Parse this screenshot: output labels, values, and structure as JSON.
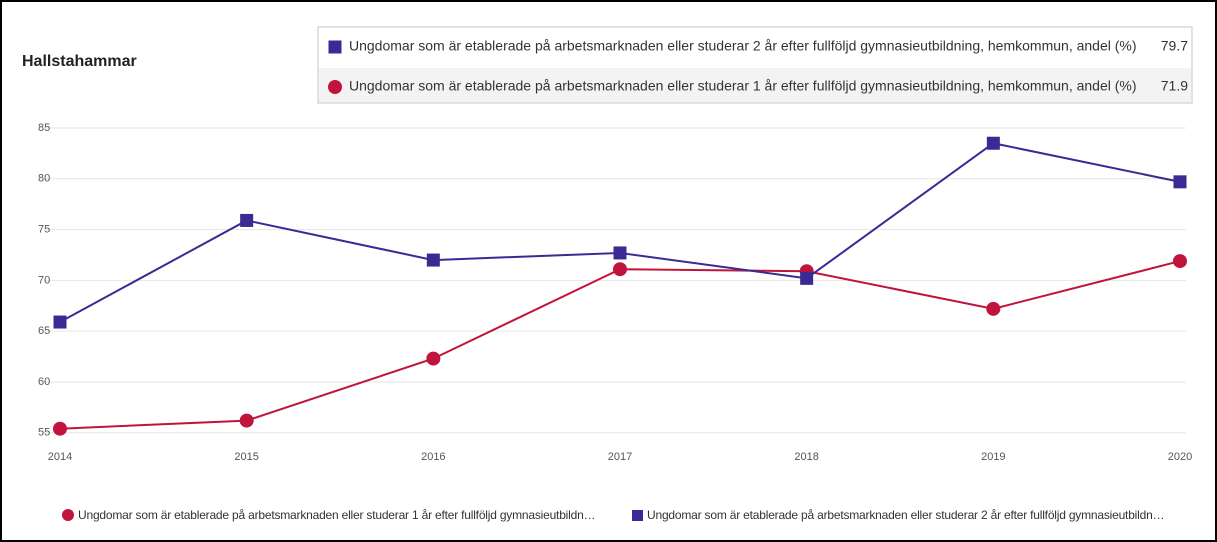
{
  "chart_data": {
    "type": "line",
    "title": "Hallstahammar",
    "x": [
      2014,
      2015,
      2016,
      2017,
      2018,
      2019,
      2020
    ],
    "xlim": [
      2014,
      2020
    ],
    "xticks": [
      2014,
      2015,
      2016,
      2017,
      2018,
      2019,
      2020
    ],
    "ylim": [
      53.5,
      85
    ],
    "yticks": [
      55,
      60,
      65,
      70,
      75,
      80,
      85
    ],
    "grid": true,
    "legend": "bottom",
    "series": [
      {
        "name": "Ungdomar som är etablerade på arbetsmarknaden eller studerar 1 år efter fullföljd gymnasieutbildning, hemkommun, andel (%)",
        "color": "#c0143c",
        "marker": "circle",
        "values": [
          55.4,
          56.2,
          62.3,
          71.1,
          70.9,
          67.2,
          71.9
        ]
      },
      {
        "name": "Ungdomar som är etablerade på arbetsmarknaden eller studerar 2 år efter fullföljd gymnasieutbildning, hemkommun, andel (%)",
        "color": "#3a2a94",
        "marker": "square",
        "values": [
          65.9,
          75.9,
          72.0,
          72.7,
          70.2,
          83.5,
          79.7
        ]
      }
    ]
  }
}
